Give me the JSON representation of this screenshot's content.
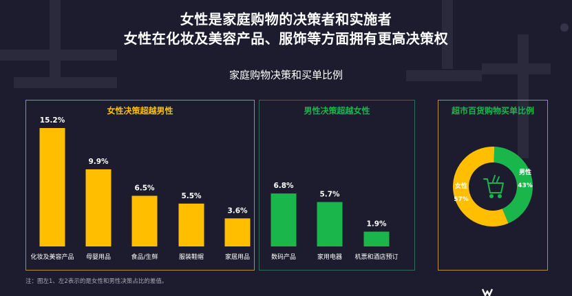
{
  "header": {
    "title_line1": "女性是家庭购物的决策者和实施者",
    "title_line2": "女性在化妆及美容产品、服饰等方面拥有更高决策权",
    "subtitle": "家庭购物决策和买单比例"
  },
  "note": "注：图左1、左2表示的是女性和男性决策占比的差值。",
  "colors": {
    "female": "#ffbf00",
    "male": "#1ab54b",
    "female_border": "#b7912e",
    "male_border": "#2f6b53"
  },
  "chart_data": [
    {
      "type": "bar",
      "title": "女性决策超越男性",
      "categories": [
        "化妆及美容产品",
        "母婴用品",
        "食品/生鲜",
        "服装鞋帽",
        "家居用品"
      ],
      "values": [
        15.2,
        9.9,
        6.5,
        5.5,
        3.6
      ],
      "labels": [
        "15.2%",
        "9.9%",
        "6.5%",
        "5.5%",
        "3.6%"
      ],
      "ylim": [
        0,
        16
      ],
      "color": "#ffbf00"
    },
    {
      "type": "bar",
      "title": "男性决策超越女性",
      "categories": [
        "数码产品",
        "家用电器",
        "机票和酒店预订"
      ],
      "values": [
        6.8,
        5.7,
        1.9
      ],
      "labels": [
        "6.8%",
        "5.7%",
        "1.9%"
      ],
      "ylim": [
        0,
        16
      ],
      "color": "#1ab54b"
    },
    {
      "type": "pie",
      "title": "超市百货购物买单比例",
      "slices": [
        {
          "name": "男性",
          "value": 43,
          "label": "43%",
          "color": "#1ab54b"
        },
        {
          "name": "女性",
          "value": 57,
          "label": "57%",
          "color": "#ffbf00"
        }
      ],
      "center_icon": "shopping-cart-icon"
    }
  ]
}
